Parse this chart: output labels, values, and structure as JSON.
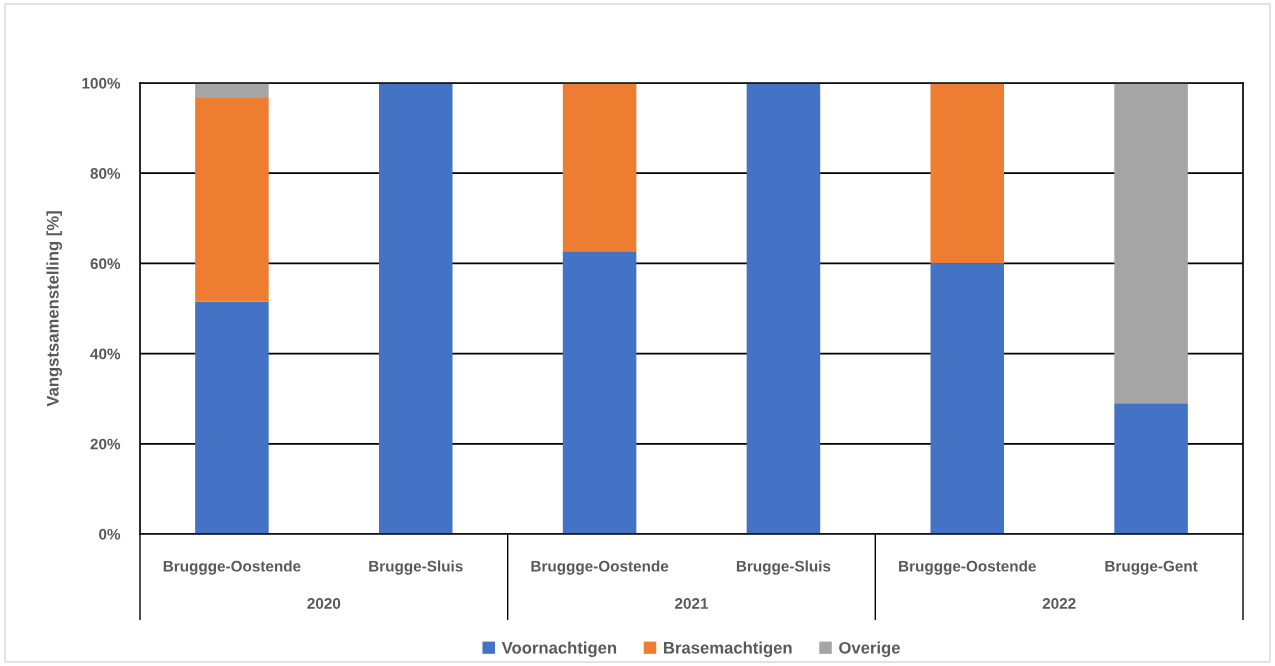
{
  "chart_data": {
    "type": "bar",
    "stacked": true,
    "categories": [
      "Bruggge-Oostende",
      "Brugge-Sluis",
      "Bruggge-Oostende",
      "Brugge-Sluis",
      "Bruggge-Oostende",
      "Brugge-Gent"
    ],
    "series": [
      {
        "name": "Voornachtigen",
        "color": "#4472c4",
        "values": [
          51.5,
          100,
          62.7,
          100,
          60,
          29
        ]
      },
      {
        "name": "Brasemachtigen",
        "color": "#ed7d31",
        "values": [
          45.2,
          null,
          37.3,
          null,
          40,
          null
        ]
      },
      {
        "name": "Overige",
        "color": "#a5a5a5",
        "values": [
          3.3,
          null,
          null,
          null,
          null,
          71
        ]
      }
    ],
    "ylabel": "Vangstsamenstelling [%]",
    "ylim": [
      0,
      100
    ],
    "yticks": [
      {
        "value": 0,
        "label": "0%"
      },
      {
        "value": 20,
        "label": "20%"
      },
      {
        "value": 40,
        "label": "40%"
      },
      {
        "value": 60,
        "label": "60%"
      },
      {
        "value": 80,
        "label": "80%"
      },
      {
        "value": 100,
        "label": "100%"
      }
    ],
    "grid": "y",
    "legend": "bottom",
    "annotations": [
      "2020",
      "2021",
      "2022"
    ]
  }
}
